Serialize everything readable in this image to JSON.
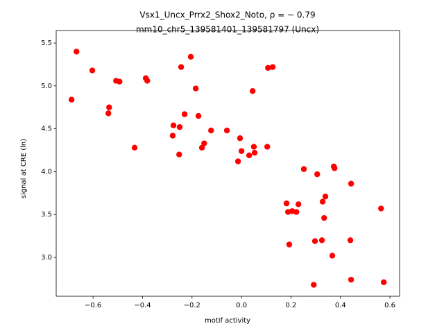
{
  "chart_data": {
    "type": "scatter",
    "title": "Vsx1_Uncx_Prrx2_Shox2_Noto, ρ = − 0.79",
    "subtitle": "mm10_chr5_139581401_139581797 (Uncx)",
    "xlabel": "motif activity",
    "ylabel": "signal at CRE (ln)",
    "color": "#ff0000",
    "xlim": [
      -0.749,
      0.639
    ],
    "ylim": [
      2.547,
      5.646
    ],
    "xticks": [
      {
        "value": -0.6,
        "label": "−0.6"
      },
      {
        "value": -0.4,
        "label": "−0.4"
      },
      {
        "value": -0.2,
        "label": "−0.2"
      },
      {
        "value": 0,
        "label": "0.0"
      },
      0.2,
      0.4,
      0.6
    ],
    "yticks": [
      {
        "value": 3,
        "label": "3.0"
      },
      3.5,
      {
        "value": 4,
        "label": "4.0"
      },
      4.5,
      {
        "value": 5,
        "label": "5.0"
      },
      5.5
    ],
    "x": [
      -0.667,
      -0.603,
      -0.687,
      -0.507,
      -0.493,
      -0.535,
      -0.538,
      -0.432,
      -0.387,
      -0.381,
      -0.244,
      -0.205,
      -0.185,
      -0.23,
      -0.174,
      -0.275,
      -0.25,
      -0.278,
      -0.252,
      -0.151,
      -0.16,
      -0.123,
      -0.059,
      -0.006,
      0.0,
      -0.014,
      0.031,
      0.05,
      0.053,
      0.104,
      0.045,
      0.107,
      0.126,
      0.252,
      0.306,
      0.373,
      0.376,
      0.443,
      0.182,
      0.188,
      0.205,
      0.222,
      0.23,
      0.339,
      0.328,
      0.334,
      0.564,
      0.193,
      0.297,
      0.325,
      0.44,
      0.367,
      0.292,
      0.443,
      0.575
    ],
    "values": [
      5.4,
      5.18,
      4.84,
      5.06,
      5.05,
      4.75,
      4.68,
      4.28,
      5.09,
      5.06,
      5.22,
      5.34,
      4.97,
      4.67,
      4.65,
      4.54,
      4.52,
      4.42,
      4.2,
      4.33,
      4.28,
      4.48,
      4.48,
      4.39,
      4.24,
      4.12,
      4.19,
      4.29,
      4.22,
      4.29,
      4.94,
      5.21,
      5.22,
      4.03,
      3.97,
      4.06,
      4.04,
      3.86,
      3.63,
      3.53,
      3.54,
      3.53,
      3.62,
      3.71,
      3.65,
      3.46,
      3.57,
      3.15,
      3.19,
      3.2,
      3.2,
      3.02,
      2.68,
      2.74,
      2.71
    ]
  }
}
